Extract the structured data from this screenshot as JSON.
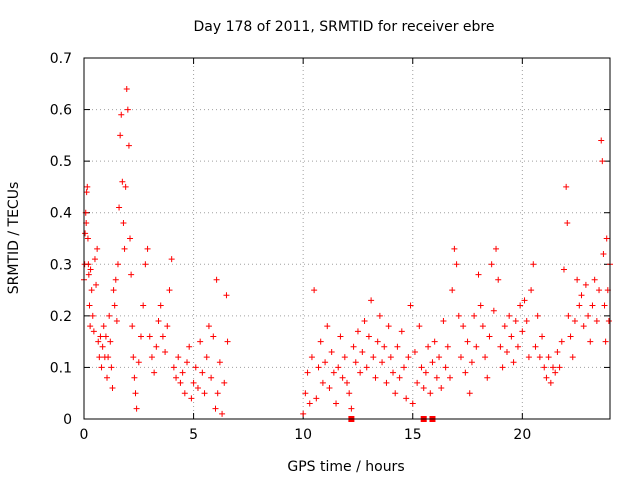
{
  "chart_data": {
    "type": "scatter",
    "title": "Day 178 of 2011, SRMTID for receiver ebre",
    "xlabel": "GPS time / hours",
    "ylabel": "SRMTID / TECUs",
    "xlim": [
      0,
      24
    ],
    "ylim": [
      0,
      0.7
    ],
    "xticks": [
      0,
      5,
      10,
      15,
      20
    ],
    "yticks": [
      0,
      0.1,
      0.2,
      0.3,
      0.4,
      0.5,
      0.6,
      0.7
    ],
    "grid": true,
    "marker": "+",
    "series": [
      {
        "name": "SRMTID",
        "color": "#ff0000",
        "points": [
          [
            0.0,
            0.27
          ],
          [
            0.03,
            0.3
          ],
          [
            0.05,
            0.36
          ],
          [
            0.08,
            0.4
          ],
          [
            0.1,
            0.38
          ],
          [
            0.12,
            0.44
          ],
          [
            0.15,
            0.45
          ],
          [
            0.18,
            0.35
          ],
          [
            0.2,
            0.3
          ],
          [
            0.22,
            0.28
          ],
          [
            0.25,
            0.22
          ],
          [
            0.28,
            0.18
          ],
          [
            0.3,
            0.29
          ],
          [
            0.35,
            0.25
          ],
          [
            0.4,
            0.2
          ],
          [
            0.45,
            0.17
          ],
          [
            0.5,
            0.31
          ],
          [
            0.55,
            0.26
          ],
          [
            0.6,
            0.33
          ],
          [
            0.65,
            0.15
          ],
          [
            0.7,
            0.12
          ],
          [
            0.75,
            0.16
          ],
          [
            0.8,
            0.1
          ],
          [
            0.85,
            0.14
          ],
          [
            0.9,
            0.18
          ],
          [
            0.95,
            0.12
          ],
          [
            1.0,
            0.16
          ],
          [
            1.05,
            0.08
          ],
          [
            1.1,
            0.12
          ],
          [
            1.15,
            0.2
          ],
          [
            1.2,
            0.15
          ],
          [
            1.25,
            0.1
          ],
          [
            1.3,
            0.06
          ],
          [
            1.35,
            0.25
          ],
          [
            1.4,
            0.22
          ],
          [
            1.45,
            0.27
          ],
          [
            1.5,
            0.19
          ],
          [
            1.55,
            0.3
          ],
          [
            1.6,
            0.41
          ],
          [
            1.65,
            0.55
          ],
          [
            1.7,
            0.59
          ],
          [
            1.75,
            0.46
          ],
          [
            1.8,
            0.38
          ],
          [
            1.85,
            0.33
          ],
          [
            1.9,
            0.45
          ],
          [
            1.95,
            0.64
          ],
          [
            2.0,
            0.6
          ],
          [
            2.05,
            0.53
          ],
          [
            2.1,
            0.35
          ],
          [
            2.15,
            0.28
          ],
          [
            2.2,
            0.18
          ],
          [
            2.25,
            0.12
          ],
          [
            2.3,
            0.08
          ],
          [
            2.35,
            0.05
          ],
          [
            2.4,
            0.02
          ],
          [
            2.5,
            0.11
          ],
          [
            2.6,
            0.16
          ],
          [
            2.7,
            0.22
          ],
          [
            2.8,
            0.3
          ],
          [
            2.9,
            0.33
          ],
          [
            3.0,
            0.16
          ],
          [
            3.1,
            0.12
          ],
          [
            3.2,
            0.09
          ],
          [
            3.3,
            0.14
          ],
          [
            3.4,
            0.19
          ],
          [
            3.5,
            0.22
          ],
          [
            3.6,
            0.16
          ],
          [
            3.7,
            0.13
          ],
          [
            3.8,
            0.18
          ],
          [
            3.9,
            0.25
          ],
          [
            4.0,
            0.31
          ],
          [
            4.1,
            0.1
          ],
          [
            4.2,
            0.08
          ],
          [
            4.3,
            0.12
          ],
          [
            4.4,
            0.07
          ],
          [
            4.5,
            0.09
          ],
          [
            4.6,
            0.05
          ],
          [
            4.7,
            0.11
          ],
          [
            4.8,
            0.14
          ],
          [
            4.9,
            0.04
          ],
          [
            5.0,
            0.07
          ],
          [
            5.1,
            0.1
          ],
          [
            5.2,
            0.06
          ],
          [
            5.3,
            0.15
          ],
          [
            5.4,
            0.09
          ],
          [
            5.5,
            0.05
          ],
          [
            5.6,
            0.12
          ],
          [
            5.7,
            0.18
          ],
          [
            5.8,
            0.08
          ],
          [
            5.9,
            0.16
          ],
          [
            6.0,
            0.02
          ],
          [
            6.05,
            0.27
          ],
          [
            6.1,
            0.05
          ],
          [
            6.2,
            0.11
          ],
          [
            6.3,
            0.01
          ],
          [
            6.4,
            0.07
          ],
          [
            6.5,
            0.24
          ],
          [
            6.55,
            0.15
          ],
          [
            10.0,
            0.01
          ],
          [
            10.1,
            0.05
          ],
          [
            10.2,
            0.09
          ],
          [
            10.3,
            0.03
          ],
          [
            10.4,
            0.12
          ],
          [
            10.5,
            0.25
          ],
          [
            10.6,
            0.04
          ],
          [
            10.7,
            0.1
          ],
          [
            10.8,
            0.15
          ],
          [
            10.9,
            0.07
          ],
          [
            11.0,
            0.11
          ],
          [
            11.1,
            0.18
          ],
          [
            11.2,
            0.06
          ],
          [
            11.3,
            0.13
          ],
          [
            11.4,
            0.09
          ],
          [
            11.5,
            0.03
          ],
          [
            11.6,
            0.1
          ],
          [
            11.7,
            0.16
          ],
          [
            11.8,
            0.08
          ],
          [
            11.9,
            0.12
          ],
          [
            12.0,
            0.07
          ],
          [
            12.1,
            0.05
          ],
          [
            12.2,
            0.02
          ],
          [
            12.3,
            0.14
          ],
          [
            12.4,
            0.11
          ],
          [
            12.5,
            0.17
          ],
          [
            12.6,
            0.09
          ],
          [
            12.7,
            0.13
          ],
          [
            12.8,
            0.19
          ],
          [
            12.9,
            0.1
          ],
          [
            13.0,
            0.16
          ],
          [
            13.1,
            0.23
          ],
          [
            13.2,
            0.12
          ],
          [
            13.3,
            0.08
          ],
          [
            13.4,
            0.15
          ],
          [
            13.5,
            0.2
          ],
          [
            13.6,
            0.11
          ],
          [
            13.7,
            0.14
          ],
          [
            13.8,
            0.07
          ],
          [
            13.9,
            0.18
          ],
          [
            14.0,
            0.12
          ],
          [
            14.1,
            0.09
          ],
          [
            14.2,
            0.05
          ],
          [
            14.3,
            0.14
          ],
          [
            14.4,
            0.08
          ],
          [
            14.5,
            0.17
          ],
          [
            14.6,
            0.1
          ],
          [
            14.7,
            0.04
          ],
          [
            14.8,
            0.12
          ],
          [
            14.9,
            0.22
          ],
          [
            15.0,
            0.03
          ],
          [
            15.1,
            0.13
          ],
          [
            15.2,
            0.07
          ],
          [
            15.3,
            0.18
          ],
          [
            15.4,
            0.1
          ],
          [
            15.5,
            0.06
          ],
          [
            15.6,
            0.09
          ],
          [
            15.7,
            0.14
          ],
          [
            15.8,
            0.05
          ],
          [
            15.9,
            0.11
          ],
          [
            16.0,
            0.15
          ],
          [
            16.1,
            0.08
          ],
          [
            16.2,
            0.12
          ],
          [
            16.3,
            0.06
          ],
          [
            16.4,
            0.19
          ],
          [
            16.5,
            0.1
          ],
          [
            16.6,
            0.14
          ],
          [
            16.7,
            0.08
          ],
          [
            16.8,
            0.25
          ],
          [
            16.9,
            0.33
          ],
          [
            17.0,
            0.3
          ],
          [
            17.1,
            0.2
          ],
          [
            17.2,
            0.12
          ],
          [
            17.3,
            0.18
          ],
          [
            17.4,
            0.09
          ],
          [
            17.5,
            0.15
          ],
          [
            17.6,
            0.05
          ],
          [
            17.7,
            0.11
          ],
          [
            17.8,
            0.2
          ],
          [
            17.9,
            0.14
          ],
          [
            18.0,
            0.28
          ],
          [
            18.1,
            0.22
          ],
          [
            18.2,
            0.18
          ],
          [
            18.3,
            0.12
          ],
          [
            18.4,
            0.08
          ],
          [
            18.5,
            0.16
          ],
          [
            18.6,
            0.3
          ],
          [
            18.7,
            0.21
          ],
          [
            18.8,
            0.33
          ],
          [
            18.9,
            0.27
          ],
          [
            19.0,
            0.14
          ],
          [
            19.1,
            0.1
          ],
          [
            19.2,
            0.18
          ],
          [
            19.3,
            0.13
          ],
          [
            19.4,
            0.2
          ],
          [
            19.5,
            0.16
          ],
          [
            19.6,
            0.11
          ],
          [
            19.7,
            0.19
          ],
          [
            19.8,
            0.14
          ],
          [
            19.9,
            0.22
          ],
          [
            20.0,
            0.17
          ],
          [
            20.1,
            0.23
          ],
          [
            20.2,
            0.19
          ],
          [
            20.3,
            0.12
          ],
          [
            20.4,
            0.25
          ],
          [
            20.5,
            0.3
          ],
          [
            20.6,
            0.14
          ],
          [
            20.7,
            0.2
          ],
          [
            20.8,
            0.12
          ],
          [
            20.9,
            0.16
          ],
          [
            21.0,
            0.1
          ],
          [
            21.1,
            0.08
          ],
          [
            21.2,
            0.12
          ],
          [
            21.3,
            0.07
          ],
          [
            21.4,
            0.1
          ],
          [
            21.5,
            0.09
          ],
          [
            21.6,
            0.13
          ],
          [
            21.7,
            0.1
          ],
          [
            21.8,
            0.15
          ],
          [
            21.9,
            0.29
          ],
          [
            22.0,
            0.45
          ],
          [
            22.05,
            0.38
          ],
          [
            22.1,
            0.2
          ],
          [
            22.2,
            0.16
          ],
          [
            22.3,
            0.12
          ],
          [
            22.4,
            0.19
          ],
          [
            22.5,
            0.27
          ],
          [
            22.6,
            0.22
          ],
          [
            22.7,
            0.24
          ],
          [
            22.8,
            0.18
          ],
          [
            22.9,
            0.26
          ],
          [
            23.0,
            0.2
          ],
          [
            23.1,
            0.15
          ],
          [
            23.2,
            0.22
          ],
          [
            23.3,
            0.27
          ],
          [
            23.4,
            0.19
          ],
          [
            23.5,
            0.25
          ],
          [
            23.6,
            0.54
          ],
          [
            23.65,
            0.5
          ],
          [
            23.7,
            0.32
          ],
          [
            23.75,
            0.22
          ],
          [
            23.8,
            0.15
          ],
          [
            23.85,
            0.35
          ],
          [
            23.9,
            0.25
          ],
          [
            23.95,
            0.19
          ],
          [
            24.0,
            0.3
          ]
        ]
      }
    ],
    "axis_markers": [
      12.2,
      15.5,
      15.9
    ]
  }
}
